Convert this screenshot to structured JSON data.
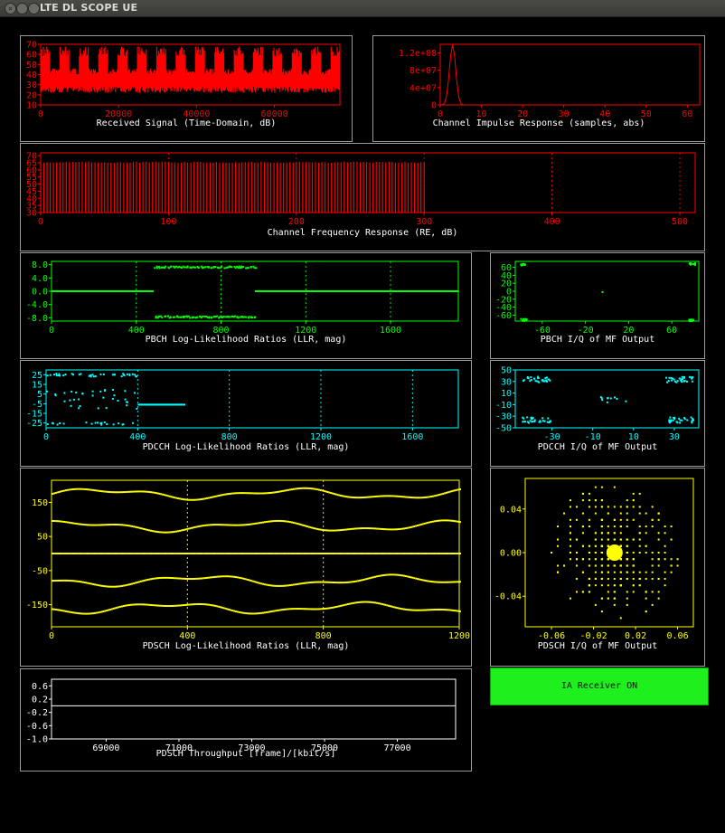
{
  "window": {
    "title": "LTE DL SCOPE UE"
  },
  "plots": [
    {
      "id": "received-signal",
      "caption": "Received Signal (Time-Domain, dB)",
      "color": "#ff0000",
      "x_ticks": [
        "0",
        "20000",
        "40000",
        "60000"
      ],
      "y_ticks": [
        "70",
        "60",
        "50",
        "40",
        "30",
        "20",
        "10"
      ],
      "chart_data": {
        "type": "line",
        "xlim": [
          0,
          76800
        ],
        "ylim": [
          10,
          70
        ],
        "x_tick_values": [
          0,
          20000,
          40000,
          60000
        ],
        "y_tick_values": [
          70,
          60,
          50,
          40,
          30,
          20,
          10
        ],
        "grid": false
      }
    },
    {
      "id": "channel-impulse-response",
      "caption": "Channel Impulse Response (samples, abs)",
      "color": "#ff0000",
      "x_ticks": [
        "0",
        "10",
        "20",
        "30",
        "40",
        "50",
        "60"
      ],
      "y_ticks": [
        "1.2e+08",
        "8e+07",
        "4e+07",
        "0"
      ],
      "chart_data": {
        "type": "line",
        "xlim": [
          0,
          63
        ],
        "ylim": [
          0,
          140000000
        ],
        "x_tick_values": [
          0,
          10,
          20,
          30,
          40,
          50,
          60
        ],
        "y_tick_values": [
          120000000,
          80000000,
          40000000,
          0
        ],
        "peak": {
          "x": 3,
          "y": 140000000
        },
        "grid": false
      }
    },
    {
      "id": "channel-frequency-response",
      "caption": "Channel Frequency Response (RE, dB)",
      "color": "#ff0000",
      "x_ticks": [
        "0",
        "100",
        "200",
        "300",
        "400",
        "500"
      ],
      "y_ticks": [
        "70",
        "65",
        "60",
        "55",
        "50",
        "45",
        "40",
        "35",
        "30"
      ],
      "chart_data": {
        "type": "bar",
        "xlim": [
          0,
          512
        ],
        "ylim": [
          30,
          72
        ],
        "x_tick_values": [
          0,
          100,
          200,
          300,
          400,
          500
        ],
        "y_tick_values": [
          70,
          65,
          60,
          55,
          50,
          45,
          40,
          35,
          30
        ],
        "filled_range": [
          0,
          300
        ],
        "level": 65,
        "grid": true
      }
    },
    {
      "id": "pbch-llr",
      "caption": "PBCH Log-Likelihood Ratios (LLR, mag)",
      "color": "#00ff00",
      "x_ticks": [
        "0",
        "400",
        "800",
        "1200",
        "1600"
      ],
      "y_ticks": [
        "8.0",
        "4.0",
        "0.0",
        "-4.0",
        "-8.0"
      ],
      "chart_data": {
        "type": "scatter",
        "xlim": [
          0,
          1920
        ],
        "ylim": [
          -9,
          9
        ],
        "x_tick_values": [
          0,
          400,
          800,
          1200,
          1600
        ],
        "y_tick_values": [
          8,
          4,
          0,
          -4,
          -8
        ],
        "grid": true
      }
    },
    {
      "id": "pbch-iq",
      "caption": "PBCH I/Q of MF Output",
      "color": "#00ff00",
      "x_ticks": [
        "-60",
        "-20",
        "20",
        "60"
      ],
      "y_ticks": [
        "60",
        "40",
        "20",
        "0",
        "-20",
        "-40",
        "-60"
      ],
      "chart_data": {
        "type": "scatter",
        "xlim": [
          -85,
          85
        ],
        "ylim": [
          -75,
          75
        ],
        "x_tick_values": [
          -60,
          -20,
          20,
          60
        ],
        "y_tick_values": [
          60,
          40,
          20,
          0,
          -20,
          -40,
          -60
        ],
        "grid": false
      }
    },
    {
      "id": "pdcch-llr",
      "caption": "PDCCH Log-Likelihood Ratios (LLR, mag)",
      "color": "#00ffff",
      "x_ticks": [
        "0",
        "400",
        "800",
        "1200",
        "1600"
      ],
      "y_ticks": [
        "25",
        "15",
        "5",
        "-5",
        "-15",
        "-25"
      ],
      "chart_data": {
        "type": "scatter",
        "xlim": [
          0,
          1800
        ],
        "ylim": [
          -30,
          30
        ],
        "x_tick_values": [
          0,
          400,
          800,
          1200,
          1600
        ],
        "y_tick_values": [
          25,
          15,
          5,
          -5,
          -15,
          -25
        ],
        "grid": true
      }
    },
    {
      "id": "pdcch-iq",
      "caption": "PDCCH I/Q of MF Output",
      "color": "#00ffff",
      "x_ticks": [
        "-30",
        "-10",
        "10",
        "30"
      ],
      "y_ticks": [
        "50",
        "30",
        "10",
        "-10",
        "-30",
        "-50"
      ],
      "chart_data": {
        "type": "scatter",
        "xlim": [
          -48,
          42
        ],
        "ylim": [
          -50,
          50
        ],
        "x_tick_values": [
          -30,
          -10,
          10,
          30
        ],
        "y_tick_values": [
          50,
          30,
          10,
          -10,
          -30,
          -50
        ],
        "grid": false
      }
    },
    {
      "id": "pdsch-llr",
      "caption": "PDSCH Log-Likelihood Ratios (LLR, mag)",
      "color": "#ffff00",
      "x_ticks": [
        "0",
        "400",
        "800",
        "1200"
      ],
      "y_ticks": [
        "150",
        "50",
        "-50",
        "-150"
      ],
      "chart_data": {
        "type": "scatter",
        "xlim": [
          0,
          1200
        ],
        "ylim": [
          -215,
          215
        ],
        "x_tick_values": [
          0,
          400,
          800,
          1200
        ],
        "y_tick_values": [
          150,
          50,
          -50,
          -150
        ],
        "grid": true
      }
    },
    {
      "id": "pdsch-iq",
      "caption": "PDSCH I/Q of MF Output",
      "color": "#ffff00",
      "x_ticks": [
        "-0.06",
        "-0.02",
        "0.02",
        "0.06"
      ],
      "y_ticks": [
        "0.04",
        "0.00",
        "-0.04"
      ],
      "chart_data": {
        "type": "scatter",
        "xlim": [
          -0.085,
          0.075
        ],
        "ylim": [
          -0.068,
          0.068
        ],
        "x_tick_values": [
          -0.06,
          -0.02,
          0.02,
          0.06
        ],
        "y_tick_values": [
          0.04,
          0,
          -0.04
        ],
        "grid": false
      }
    },
    {
      "id": "pdsch-throughput",
      "caption": "PDSCH Throughput [frame]/[kbit/s]",
      "color": "#ffffff",
      "x_ticks": [
        "69000",
        "71000",
        "73000",
        "75000",
        "77000"
      ],
      "y_ticks": [
        "0.6",
        "0.2",
        "-0.2",
        "-0.6",
        "-1.0"
      ],
      "chart_data": {
        "type": "line",
        "xlim": [
          67500,
          78600
        ],
        "ylim": [
          -1.0,
          0.8
        ],
        "x_tick_values": [
          69000,
          71000,
          73000,
          75000,
          77000
        ],
        "y_tick_values": [
          0.6,
          0.2,
          -0.2,
          -0.6,
          -1.0
        ],
        "line_value": 0.0,
        "grid": false
      }
    }
  ],
  "ia_button": {
    "label": "IA Receiver ON",
    "color": "#1ef01e"
  }
}
